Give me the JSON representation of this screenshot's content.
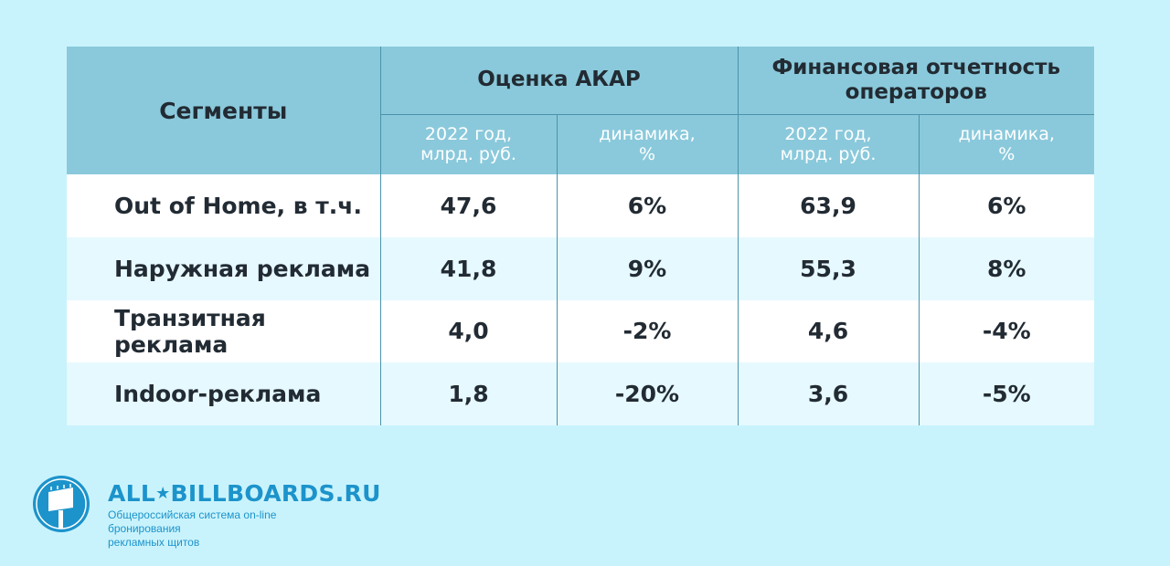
{
  "chart_data": {
    "type": "table",
    "headers": {
      "segment": "Сегменты",
      "group1": "Оценка АКАР",
      "group2_line1": "Финансовая отчетность",
      "group2_line2": "операторов",
      "sub_year_line1": "2022 год,",
      "sub_year_line2": "млрд. руб.",
      "sub_dyn_line1": "динамика,",
      "sub_dyn_line2": "%"
    },
    "rows": [
      {
        "segment": "Out of Home, в т.ч.",
        "akar_value": "47,6",
        "akar_dynamics": "6%",
        "fin_value": "63,9",
        "fin_dynamics": "6%"
      },
      {
        "segment": "Наружная реклама",
        "akar_value": "41,8",
        "akar_dynamics": "9%",
        "fin_value": "55,3",
        "fin_dynamics": "8%"
      },
      {
        "segment": "Транзитная реклама",
        "akar_value": "4,0",
        "akar_dynamics": "-2%",
        "fin_value": "4,6",
        "fin_dynamics": "-4%"
      },
      {
        "segment": "Indoor-реклама",
        "akar_value": "1,8",
        "akar_dynamics": "-20%",
        "fin_value": "3,6",
        "fin_dynamics": "-5%"
      }
    ]
  },
  "logo": {
    "brand_left": "ALL",
    "brand_star": "★",
    "brand_right": "BILLBOARDS.RU",
    "tagline_line1": "Общероссийская система on-line бронирования",
    "tagline_line2": "рекламных щитов"
  },
  "colors": {
    "background": "#c9f3fc",
    "header": "#8ac9db",
    "row_white": "#ffffff",
    "row_light": "#e6f9fe",
    "brand": "#1c93cb"
  }
}
